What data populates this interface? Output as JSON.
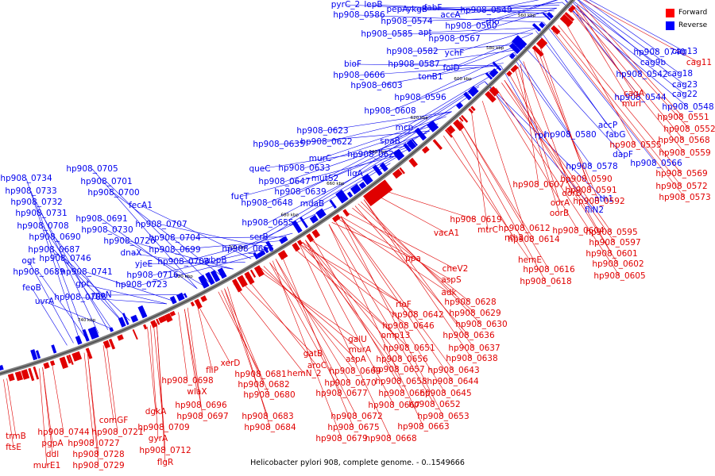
{
  "caption": "Helicobacter pylori 908, complete genome. - 0..1549666",
  "legend": [
    {
      "label": "Forward",
      "color": "#ff0000"
    },
    {
      "label": "Reverse",
      "color": "#0000ff"
    }
  ],
  "colors": {
    "forward": "#e00000",
    "reverse": "#0000ee",
    "backbone": "#808080"
  },
  "ticks": [
    "540 kbp",
    "560 kbp",
    "580 kbp",
    "600 kbp",
    "620 kbp",
    "640 kbp",
    "660 kbp",
    "680 kbp",
    "700 kbp",
    "720 kbp",
    "740 kbp"
  ],
  "reverse_labels": [
    "pyrC_2",
    "lepB",
    "hp908_0586",
    "pepA",
    "ykgB",
    "fabF",
    "hp908_0574",
    "accA",
    "apt",
    "hp908_0560",
    "hp908_0585",
    "hp908_0567",
    "hp908_0549",
    "rho",
    "hp908_0582",
    "ychF",
    "hp908_0587",
    "folD",
    "bioF",
    "tonB1",
    "hp908_0606",
    "hp908_0603",
    "hp908_0596",
    "hp908_0608",
    "mcp",
    "hp908_0623",
    "spaB",
    "hp908_0622",
    "hp908_0635",
    "hp908_0621",
    "murC",
    "queC",
    "hp908_0633",
    "hp908_0647",
    "ligA",
    "mutS2",
    "fucT",
    "hp908_0639",
    "hp908_0648",
    "mdaB",
    "hp908_0655",
    "serB",
    "hp908_0666",
    "hp908_0705",
    "hp908_0734",
    "hp908_0701",
    "hp908_0733",
    "hp908_0700",
    "hp908_0732",
    "fecA1",
    "hp908_0731",
    "hp908_0691",
    "hp908_0708",
    "hp908_0730",
    "hp908_0707",
    "hp908_0690",
    "hp908_0726",
    "hp908_0704",
    "hp908_0687",
    "dnaX",
    "hp908_0703",
    "wbpB",
    "ogt",
    "hp908_0746",
    "yjeE",
    "hp908_0699",
    "hp908_0689",
    "hp908_0741",
    "hp908_0716",
    "feoB",
    "gpt",
    "hp908_0723",
    "hp908_0706",
    "rpoN",
    "uvrA",
    "hp908_0740",
    "cag13",
    "cag9b",
    "cag18",
    "hp908_0542",
    "cag23",
    "hp908_0544",
    "cag22",
    "hp908_0548",
    "accP",
    "fabG",
    "rpi",
    "hp908_0580",
    "dapF",
    "hp908_0578",
    "hp908_0566",
    "nth1",
    "fliN2"
  ],
  "forward_labels": [
    "cag11",
    "cagA",
    "murI",
    "hp908_0551",
    "hp908_0552",
    "hp908_0555",
    "hp908_0568",
    "hp908_0559",
    "hp908_0569",
    "hp908_0590",
    "hp908_0572",
    "hp908_0591",
    "hp908_0573",
    "hp908_0592",
    "hp908_0607",
    "oorD",
    "oorA",
    "oorB",
    "hp908_0619",
    "hp908_0612",
    "mtrC",
    "hp908_0604",
    "hp908_0595",
    "hp908_0597",
    "hp908_0614",
    "nth2",
    "hp908_0601",
    "hemE",
    "hp908_0602",
    "hp908_0616",
    "hp908_0605",
    "hp908_0618",
    "vacA1",
    "ppa",
    "cheV2",
    "aspS",
    "adk",
    "hp908_0628",
    "rloF",
    "hp908_0642",
    "hp908_0629",
    "hp908_0646",
    "hp908_0630",
    "omp13",
    "hp908_0636",
    "galU",
    "hp908_0651",
    "hp908_0637",
    "murA",
    "hp908_0638",
    "gatB",
    "hp908_0656",
    "aspA",
    "hp908_0657",
    "hp908_0643",
    "aroC",
    "hp908_0669",
    "hp908_0658",
    "hp908_0644",
    "hemN_2",
    "hp908_0670",
    "hp908_0645",
    "hp908_0660",
    "xerD",
    "hp908_0681",
    "hp908_0677",
    "hp908_0652",
    "hp908_0682",
    "hp908_0667",
    "hp908_0680",
    "hp908_0672",
    "hp908_0653",
    "hp908_0683",
    "hp908_0675",
    "hp908_0663",
    "hp908_0684",
    "hp908_0679",
    "hp908_0668",
    "fliP",
    "hp908_0698",
    "wlaX",
    "hp908_0696",
    "hp908_0697",
    "dgkA",
    "hp908_0709",
    "gyrA",
    "hp908_0712",
    "flgR",
    "comGF",
    "hp908_0721",
    "hp908_0744",
    "pgpA",
    "hp908_0727",
    "ddl",
    "hp908_0728",
    "murE1",
    "hp908_0729",
    "trmB",
    "ftsE"
  ]
}
